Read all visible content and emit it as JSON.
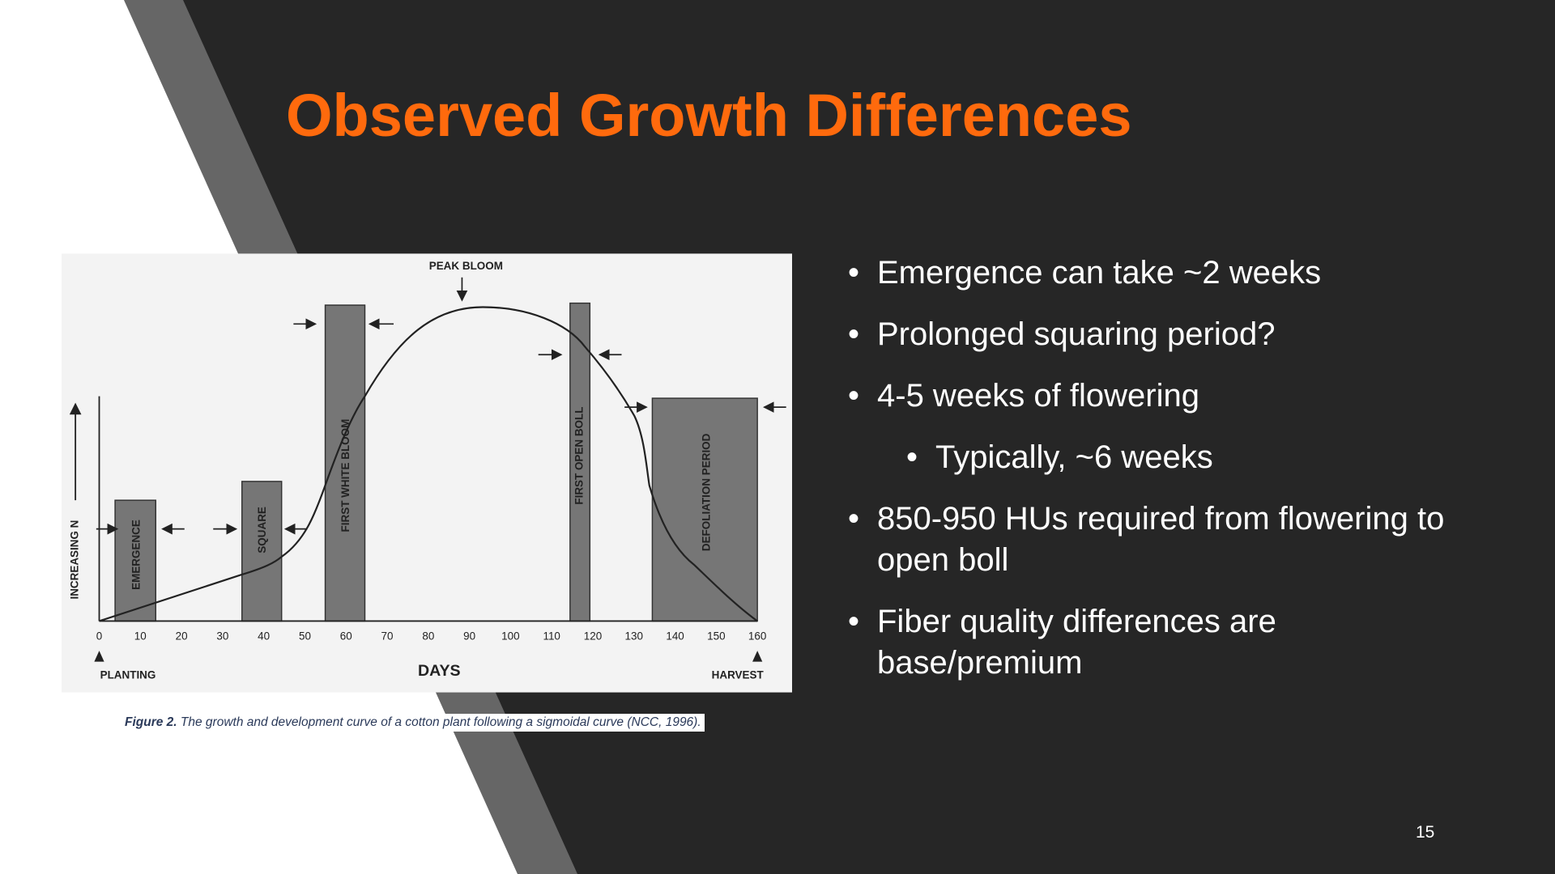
{
  "slide": {
    "title": "Observed Growth Differences",
    "bullets": [
      {
        "text": "Emergence can take ~2 weeks"
      },
      {
        "text": "Prolonged squaring period?"
      },
      {
        "text": "4-5 weeks of flowering",
        "sub": [
          "Typically, ~6 weeks"
        ]
      },
      {
        "text": "850-950 HUs required from flowering to open boll"
      },
      {
        "text": "Fiber quality differences are base/premium"
      }
    ],
    "page_number": "15"
  },
  "figure": {
    "peak_label": "PEAK BLOOM",
    "y_label": "INCREASING N",
    "x_label": "DAYS",
    "start_label": "PLANTING",
    "end_label": "HARVEST",
    "x_ticks": [
      0,
      10,
      20,
      30,
      40,
      50,
      60,
      70,
      80,
      90,
      100,
      110,
      120,
      130,
      140,
      150,
      160
    ],
    "stages": [
      "EMERGENCE",
      "SQUARE",
      "FIRST WHITE BLOOM",
      "FIRST OPEN BOLL",
      "DEFOLIATION PERIOD"
    ]
  },
  "caption": {
    "label": "Figure 2.",
    "text": "The growth and development curve of a cotton plant following a sigmoidal curve (NCC, 1996)."
  }
}
